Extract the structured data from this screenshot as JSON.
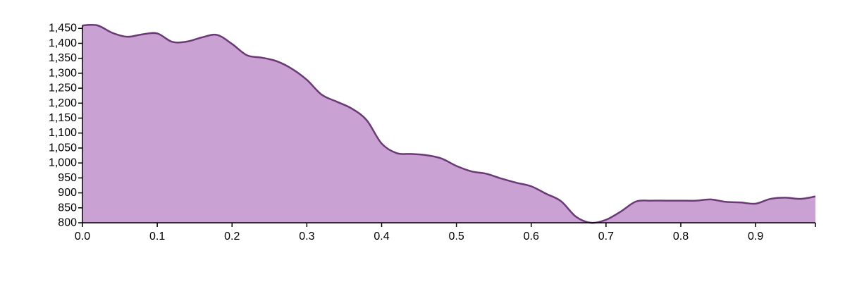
{
  "chart_data": {
    "type": "area",
    "title": "",
    "xlabel": "",
    "ylabel": "",
    "xlim": [
      0,
      0.98
    ],
    "ylim": [
      800,
      1460
    ],
    "x_ticks": [
      0,
      0.1,
      0.2,
      0.3,
      0.4,
      0.5,
      0.6,
      0.7,
      0.8,
      0.9
    ],
    "x_tick_labels": [
      "0.0",
      "0.1",
      "0.2",
      "0.3",
      "0.4",
      "0.5",
      "0.6",
      "0.7",
      "0.8",
      "0.9"
    ],
    "y_ticks": [
      800,
      850,
      900,
      950,
      1000,
      1050,
      1100,
      1150,
      1200,
      1250,
      1300,
      1350,
      1400,
      1450
    ],
    "y_tick_labels": [
      "800",
      "850",
      "900",
      "950",
      "1,000",
      "1,050",
      "1,100",
      "1,150",
      "1,200",
      "1,250",
      "1,300",
      "1,350",
      "1,400",
      "1,450"
    ],
    "grid": false,
    "legend": "none",
    "series": [
      {
        "x": [
          0.0,
          0.02,
          0.04,
          0.06,
          0.08,
          0.1,
          0.12,
          0.14,
          0.16,
          0.18,
          0.2,
          0.22,
          0.24,
          0.26,
          0.28,
          0.3,
          0.32,
          0.34,
          0.36,
          0.38,
          0.4,
          0.42,
          0.44,
          0.46,
          0.48,
          0.5,
          0.52,
          0.54,
          0.56,
          0.58,
          0.6,
          0.62,
          0.64,
          0.66,
          0.68,
          0.7,
          0.72,
          0.74,
          0.76,
          0.78,
          0.8,
          0.82,
          0.84,
          0.86,
          0.88,
          0.9,
          0.92,
          0.94,
          0.96,
          0.98
        ],
        "values": [
          1460,
          1460,
          1435,
          1422,
          1430,
          1433,
          1405,
          1406,
          1420,
          1428,
          1398,
          1360,
          1352,
          1340,
          1315,
          1278,
          1228,
          1205,
          1182,
          1143,
          1065,
          1033,
          1030,
          1026,
          1015,
          990,
          972,
          964,
          948,
          934,
          922,
          897,
          872,
          820,
          800,
          810,
          838,
          871,
          874,
          874,
          874,
          874,
          878,
          870,
          868,
          864,
          880,
          884,
          880,
          888
        ]
      }
    ],
    "colors": {
      "fill": "#c9a1d3",
      "stroke": "#6b3a76"
    }
  }
}
